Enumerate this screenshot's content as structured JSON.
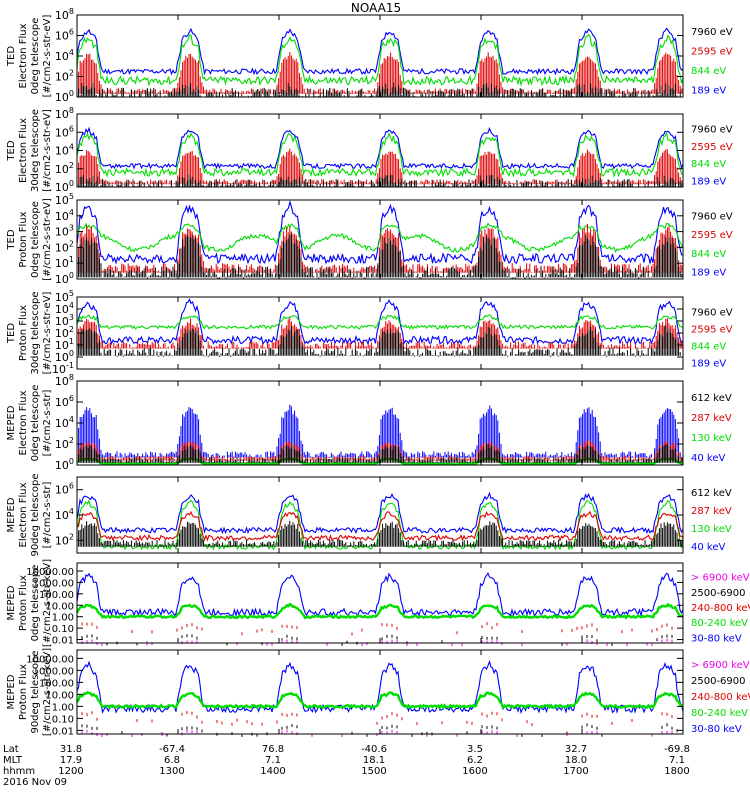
{
  "title": "NOAA15",
  "colors": {
    "black": "#000000",
    "red": "#dd0000",
    "green": "#00dd00",
    "blue": "#0000ff",
    "magenta": "#ee00ee"
  },
  "footer": {
    "row_labels": [
      "Lat",
      "MLT",
      "hhmm"
    ],
    "date": "2016 Nov 09",
    "columns": [
      {
        "lat": "31.8",
        "mlt": "17.9",
        "hhmm": "1200"
      },
      {
        "lat": "-67.4",
        "mlt": "6.8",
        "hhmm": "1300"
      },
      {
        "lat": "76.8",
        "mlt": "7.1",
        "hhmm": "1400"
      },
      {
        "lat": "-40.6",
        "mlt": "18.1",
        "hhmm": "1500"
      },
      {
        "lat": "3.5",
        "mlt": "6.2",
        "hhmm": "1600"
      },
      {
        "lat": "32.7",
        "mlt": "18.0",
        "hhmm": "1700"
      },
      {
        "lat": "-69.8",
        "mlt": "7.1",
        "hhmm": "1800"
      }
    ]
  },
  "chart_data": [
    {
      "type": "line",
      "x_range": [
        "1200",
        "1800"
      ],
      "y_scale": "log",
      "ylabel": [
        "TED",
        "Electron Flux",
        "0deg telescope",
        "[#/cm2-s-str-eV]"
      ],
      "yticks": [
        "10^0",
        "10^2",
        "10^4",
        "10^6",
        "10^8"
      ],
      "ylim": [
        1,
        100000000
      ],
      "series": [
        {
          "name": "7960 eV",
          "color": "black"
        },
        {
          "name": "2595 eV",
          "color": "red"
        },
        {
          "name": "844 eV",
          "color": "green"
        },
        {
          "name": "189 eV",
          "color": "blue"
        }
      ]
    },
    {
      "type": "line",
      "x_range": [
        "1200",
        "1800"
      ],
      "y_scale": "log",
      "ylabel": [
        "TED",
        "Electron Flux",
        "30deg telescope",
        "[#/cm2-s-str-eV]"
      ],
      "yticks": [
        "10^0",
        "10^2",
        "10^4",
        "10^6",
        "10^8"
      ],
      "ylim": [
        1,
        100000000
      ],
      "series": [
        {
          "name": "7960 eV",
          "color": "black"
        },
        {
          "name": "2595 eV",
          "color": "red"
        },
        {
          "name": "844 eV",
          "color": "green"
        },
        {
          "name": "189 eV",
          "color": "blue"
        }
      ]
    },
    {
      "type": "line",
      "x_range": [
        "1200",
        "1800"
      ],
      "y_scale": "log",
      "ylabel": [
        "TED",
        "Proton Flux",
        "0deg telescope",
        "[#/cm2-s-str-eV]"
      ],
      "yticks": [
        "10^0",
        "10^1",
        "10^2",
        "10^3",
        "10^4",
        "10^5"
      ],
      "ylim": [
        1,
        100000
      ],
      "series": [
        {
          "name": "7960 eV",
          "color": "black"
        },
        {
          "name": "2595 eV",
          "color": "red"
        },
        {
          "name": "844 eV",
          "color": "green"
        },
        {
          "name": "189 eV",
          "color": "blue"
        }
      ]
    },
    {
      "type": "line",
      "x_range": [
        "1200",
        "1800"
      ],
      "y_scale": "log",
      "ylabel": [
        "TED",
        "Proton Flux",
        "30deg telescope",
        "[#/cm2-s-str-eV]"
      ],
      "yticks": [
        "10^-1",
        "10^0",
        "10^1",
        "10^2",
        "10^3",
        "10^4",
        "10^5"
      ],
      "ylim": [
        0.1,
        100000
      ],
      "series": [
        {
          "name": "7960 eV",
          "color": "black"
        },
        {
          "name": "2595 eV",
          "color": "red"
        },
        {
          "name": "844 eV",
          "color": "green"
        },
        {
          "name": "189 eV",
          "color": "blue"
        }
      ]
    },
    {
      "type": "line",
      "x_range": [
        "1200",
        "1800"
      ],
      "y_scale": "log",
      "ylabel": [
        "MEPED",
        "Electron Flux",
        "0deg telescope",
        "[#/cm2-s-str]"
      ],
      "yticks": [
        "10^0",
        "10^2",
        "10^4",
        "10^6",
        "10^8"
      ],
      "ylim": [
        1,
        100000000
      ],
      "series": [
        {
          "name": "612 keV",
          "color": "black"
        },
        {
          "name": "287 keV",
          "color": "red"
        },
        {
          "name": "130 keV",
          "color": "green"
        },
        {
          "name": "40 keV",
          "color": "blue"
        }
      ]
    },
    {
      "type": "line",
      "x_range": [
        "1200",
        "1800"
      ],
      "y_scale": "log",
      "ylabel": [
        "MEPED",
        "Electron Flux",
        "90deg telescope",
        "[#/cm2-s-str]"
      ],
      "yticks": [
        "10^2",
        "10^4",
        "10^6"
      ],
      "ylim": [
        10,
        10000000
      ],
      "series": [
        {
          "name": "612 keV",
          "color": "black"
        },
        {
          "name": "287 keV",
          "color": "red"
        },
        {
          "name": "130 keV",
          "color": "green"
        },
        {
          "name": "40 keV",
          "color": "blue"
        }
      ]
    },
    {
      "type": "line",
      "x_range": [
        "1200",
        "1800"
      ],
      "y_scale": "log",
      "ylabel": [
        "MEPED",
        "Proton Flux",
        "0deg telescope",
        "[#/cm2-s-str-keV]"
      ],
      "yticks": [
        "0.01",
        "0.10",
        "1.00",
        "10.00",
        "100.00",
        "1000.00",
        "10000.00"
      ],
      "ylim": [
        0.005,
        50000
      ],
      "series": [
        {
          "name": "> 6900 keV",
          "color": "magenta"
        },
        {
          "name": "2500-6900",
          "color": "black"
        },
        {
          "name": "240-800 keV",
          "color": "red"
        },
        {
          "name": "80-240 keV",
          "color": "green"
        },
        {
          "name": "30-80 keV",
          "color": "blue"
        }
      ]
    },
    {
      "type": "line",
      "x_range": [
        "1200",
        "1800"
      ],
      "y_scale": "log",
      "ylabel": [
        "MEPED",
        "Proton Flux",
        "90deg telescope",
        "[#/cm2-s-str-keV]"
      ],
      "yticks": [
        "0.01",
        "0.10",
        "1.00",
        "10.00",
        "100.00",
        "1000.00",
        "10000.00"
      ],
      "ylim": [
        0.005,
        50000
      ],
      "series": [
        {
          "name": "> 6900 keV",
          "color": "magenta"
        },
        {
          "name": "2500-6900",
          "color": "black"
        },
        {
          "name": "240-800 keV",
          "color": "red"
        },
        {
          "name": "80-240 keV",
          "color": "green"
        },
        {
          "name": "30-80 keV",
          "color": "blue"
        }
      ]
    }
  ]
}
